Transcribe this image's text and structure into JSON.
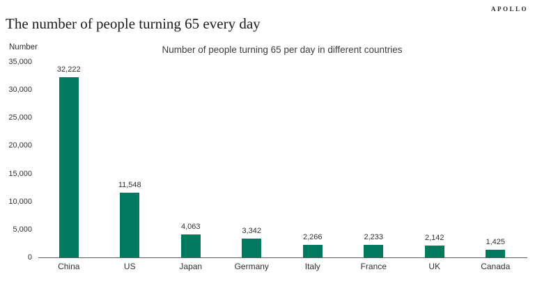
{
  "brand": "APOLLO",
  "page_title": "The number of people turning 65 every day",
  "chart_data": {
    "type": "bar",
    "title": "Number of people turning 65 per day in different countries",
    "ylabel": "Number",
    "xlabel": "",
    "categories": [
      "China",
      "US",
      "Japan",
      "Germany",
      "Italy",
      "France",
      "UK",
      "Canada"
    ],
    "values": [
      32222,
      11548,
      4063,
      3342,
      2266,
      2233,
      2142,
      1425
    ],
    "value_labels": [
      "32,222",
      "11,548",
      "4,063",
      "3,342",
      "2,266",
      "2,233",
      "2,142",
      "1,425"
    ],
    "ylim": [
      0,
      35000
    ],
    "ytick_step": 5000,
    "ytick_labels": [
      "0",
      "5,000",
      "10,000",
      "15,000",
      "20,000",
      "25,000",
      "30,000",
      "35,000"
    ],
    "bar_color": "#007a5e",
    "grid": false,
    "legend": "none"
  }
}
